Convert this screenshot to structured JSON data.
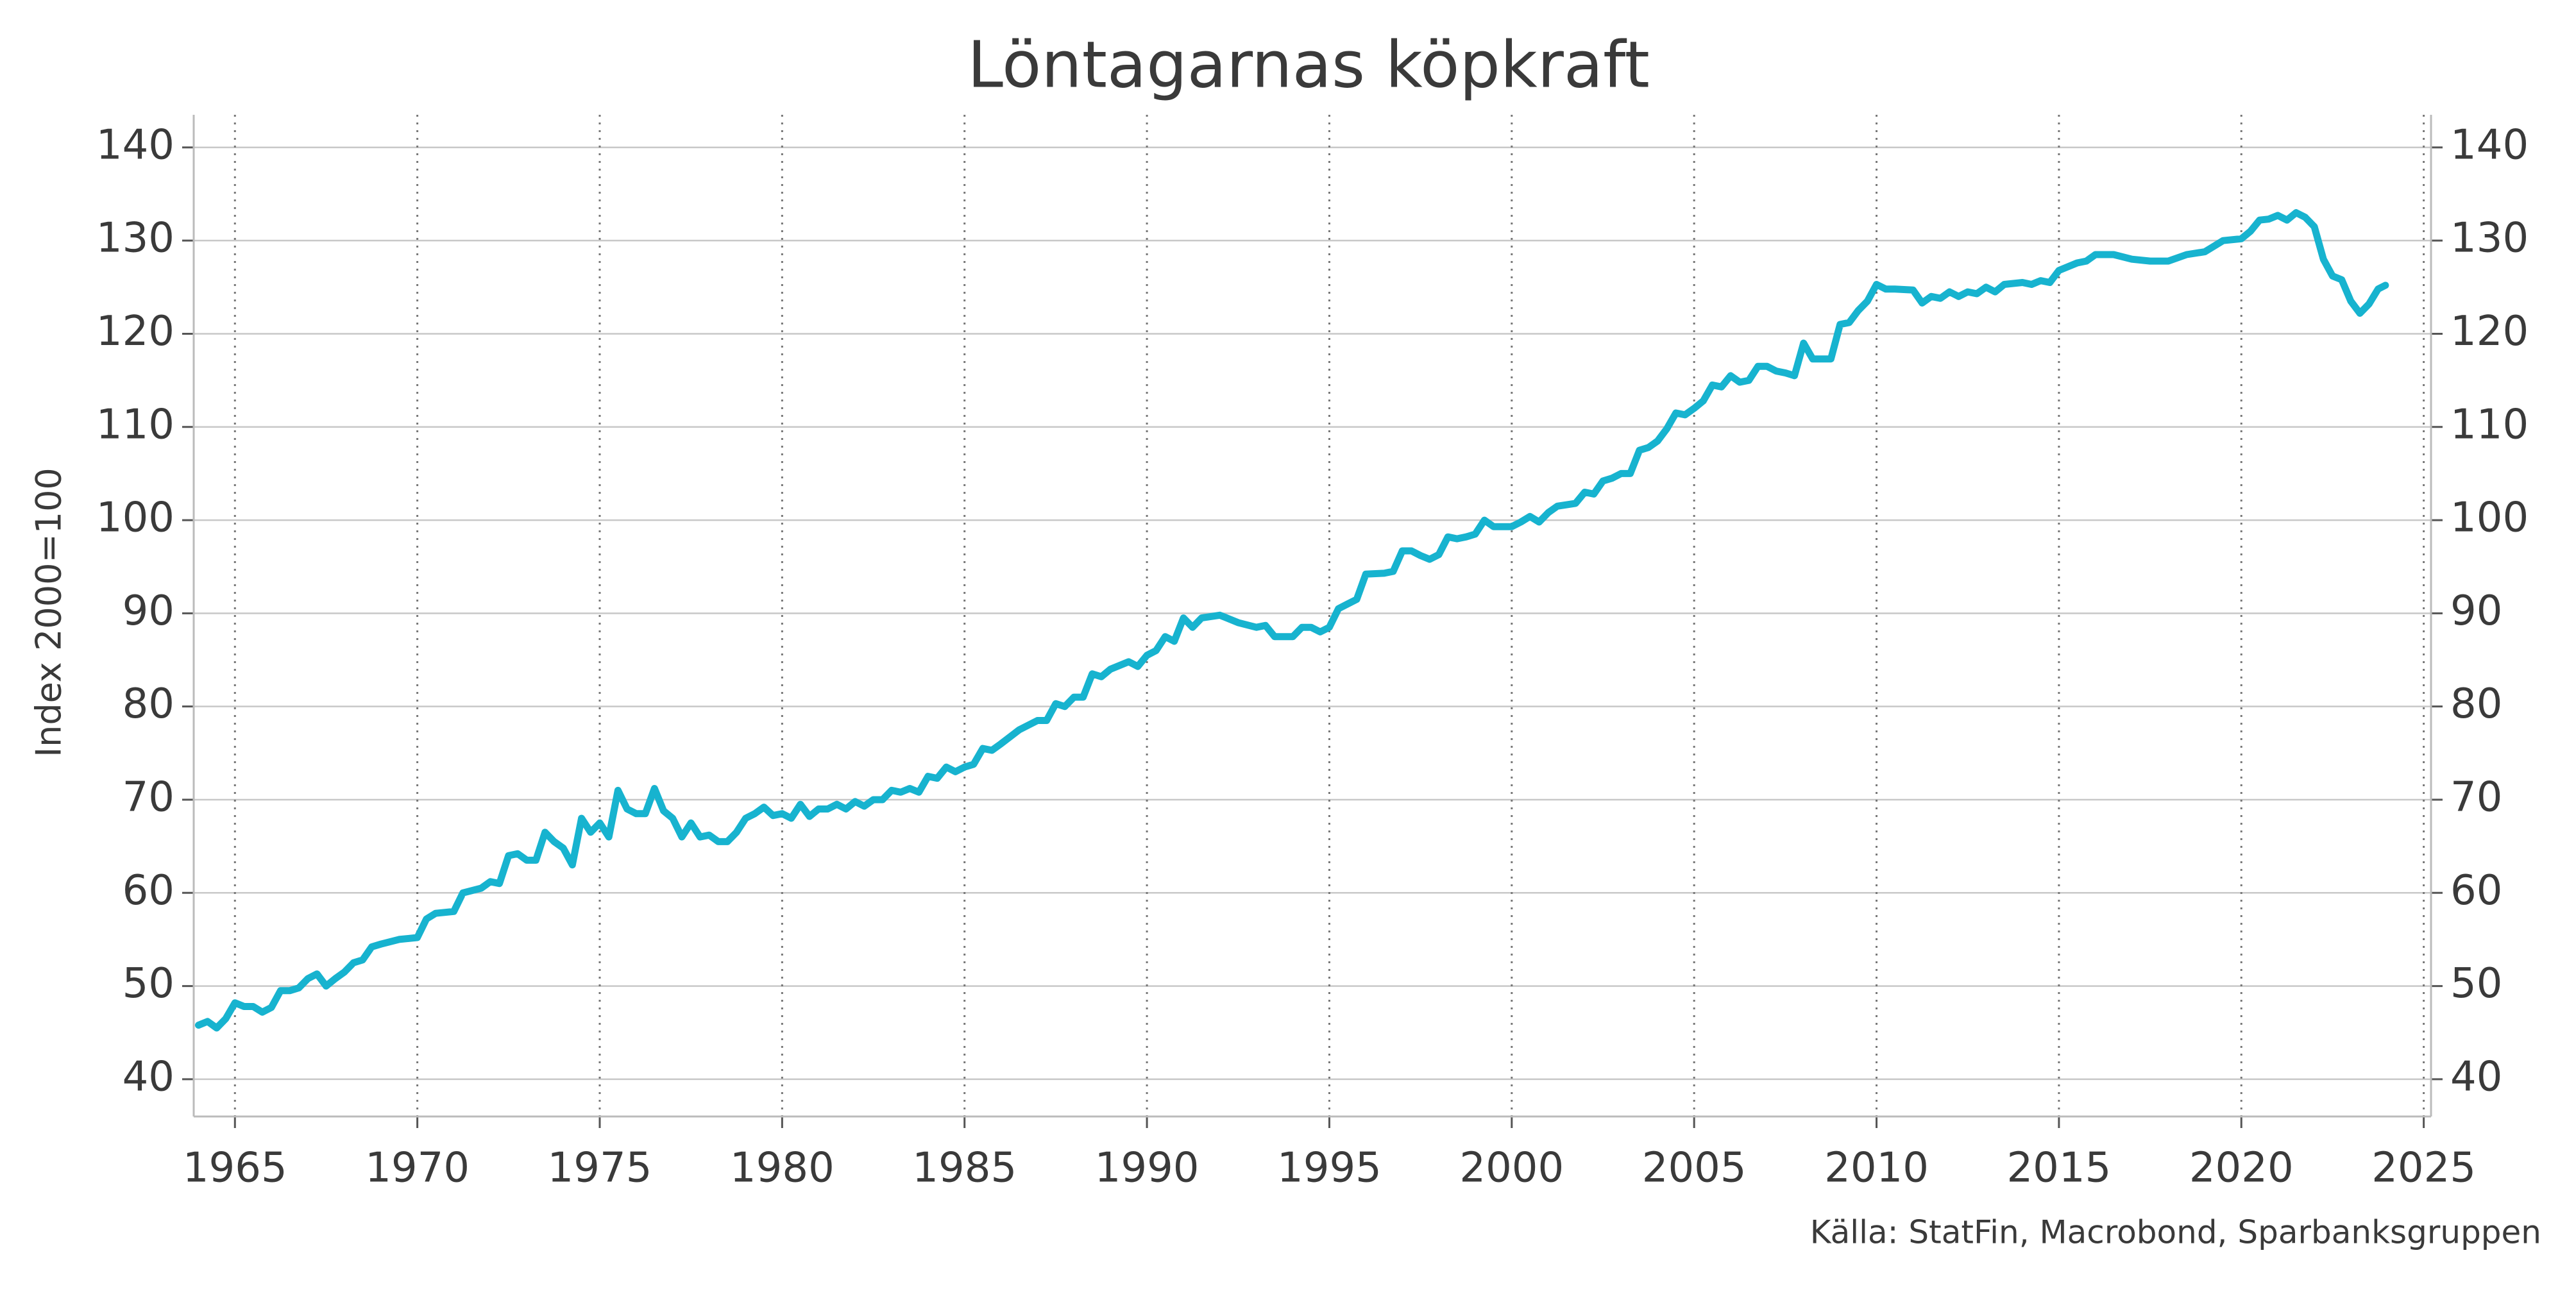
{
  "chart_data": {
    "type": "line",
    "title": "Löntagarnas köpkraft",
    "y_label": "Index 2000=100",
    "source": "Källa: StatFin, Macrobond, Sparbanksgruppen",
    "x": [
      1964.0,
      1964.25,
      1964.5,
      1964.75,
      1965.0,
      1965.25,
      1965.5,
      1965.75,
      1966.0,
      1966.25,
      1966.5,
      1966.75,
      1967.0,
      1967.25,
      1967.5,
      1967.75,
      1968.0,
      1968.25,
      1968.5,
      1968.75,
      1969.0,
      1969.5,
      1970.0,
      1970.25,
      1970.5,
      1971.0,
      1971.25,
      1971.75,
      1972.0,
      1972.25,
      1972.5,
      1972.75,
      1973.0,
      1973.25,
      1973.5,
      1973.75,
      1974.0,
      1974.25,
      1974.5,
      1974.75,
      1975.0,
      1975.25,
      1975.5,
      1975.75,
      1976.0,
      1976.25,
      1976.5,
      1976.75,
      1977.0,
      1977.25,
      1977.5,
      1977.75,
      1978.0,
      1978.25,
      1978.5,
      1978.75,
      1979.0,
      1979.25,
      1979.5,
      1979.75,
      1980.0,
      1980.25,
      1980.5,
      1980.75,
      1981.0,
      1981.25,
      1981.5,
      1981.75,
      1982.0,
      1982.25,
      1982.5,
      1982.75,
      1983.0,
      1983.25,
      1983.5,
      1983.75,
      1984.0,
      1984.25,
      1984.5,
      1984.75,
      1985.0,
      1985.25,
      1985.5,
      1985.75,
      1986.0,
      1986.5,
      1987.0,
      1987.25,
      1987.5,
      1987.75,
      1988.0,
      1988.25,
      1988.5,
      1988.75,
      1989.0,
      1989.5,
      1989.75,
      1990.0,
      1990.25,
      1990.5,
      1990.75,
      1991.0,
      1991.25,
      1991.5,
      1992.0,
      1992.5,
      1993.0,
      1993.25,
      1993.5,
      1994.0,
      1994.25,
      1994.5,
      1994.75,
      1995.0,
      1995.25,
      1995.5,
      1995.75,
      1996.0,
      1996.5,
      1996.75,
      1997.0,
      1997.25,
      1997.5,
      1997.75,
      1998.0,
      1998.25,
      1998.5,
      1998.75,
      1999.0,
      1999.25,
      1999.5,
      2000.0,
      2000.25,
      2000.5,
      2000.75,
      2001.0,
      2001.25,
      2001.75,
      2002.0,
      2002.25,
      2002.5,
      2002.75,
      2003.0,
      2003.25,
      2003.5,
      2003.75,
      2004.0,
      2004.25,
      2004.5,
      2004.75,
      2005.0,
      2005.25,
      2005.5,
      2005.75,
      2006.0,
      2006.25,
      2006.5,
      2006.75,
      2007.0,
      2007.25,
      2007.5,
      2007.75,
      2008.0,
      2008.25,
      2008.5,
      2008.75,
      2009.0,
      2009.25,
      2009.5,
      2009.75,
      2010.0,
      2010.25,
      2010.5,
      2011.0,
      2011.25,
      2011.5,
      2011.75,
      2012.0,
      2012.25,
      2012.5,
      2012.75,
      2013.0,
      2013.25,
      2013.5,
      2014.0,
      2014.25,
      2014.5,
      2014.75,
      2015.0,
      2015.5,
      2015.75,
      2016.0,
      2016.5,
      2017.0,
      2017.5,
      2018.0,
      2018.5,
      2019.0,
      2019.5,
      2020.0,
      2020.25,
      2020.5,
      2020.75,
      2021.0,
      2021.25,
      2021.5,
      2021.75,
      2022.0,
      2022.25,
      2022.5,
      2022.75,
      2023.0,
      2023.25,
      2023.5,
      2023.75,
      2023.95
    ],
    "series": [
      {
        "color": "#17b3cf",
        "values": [
          45.8,
          46.2,
          45.5,
          46.5,
          48.2,
          47.8,
          47.8,
          47.2,
          47.7,
          49.5,
          49.5,
          49.8,
          50.8,
          51.3,
          50.0,
          50.8,
          51.5,
          52.5,
          52.8,
          54.2,
          54.5,
          55.0,
          55.2,
          57.2,
          57.8,
          58.0,
          60.0,
          60.5,
          61.2,
          61.0,
          64.0,
          64.2,
          63.5,
          63.5,
          66.5,
          65.5,
          64.8,
          63.0,
          68.0,
          66.5,
          67.5,
          66.0,
          71.0,
          69.0,
          68.5,
          68.5,
          71.2,
          68.8,
          68.0,
          66.0,
          67.5,
          66.0,
          66.2,
          65.5,
          65.5,
          66.5,
          68.0,
          68.5,
          69.2,
          68.3,
          68.5,
          68.0,
          69.5,
          68.2,
          69.0,
          69.0,
          69.5,
          69.0,
          69.8,
          69.3,
          70.0,
          70.0,
          71.0,
          70.8,
          71.2,
          70.8,
          72.5,
          72.3,
          73.5,
          73.0,
          73.5,
          73.8,
          75.5,
          75.3,
          76.0,
          77.5,
          78.5,
          78.5,
          80.3,
          80.0,
          81.0,
          81.0,
          83.5,
          83.2,
          84.0,
          84.8,
          84.3,
          85.5,
          86.0,
          87.5,
          87.0,
          89.5,
          88.5,
          89.5,
          89.8,
          89.0,
          88.5,
          88.7,
          87.5,
          87.5,
          88.5,
          88.5,
          88.0,
          88.5,
          90.5,
          91.0,
          91.5,
          94.2,
          94.3,
          94.5,
          96.7,
          96.7,
          96.2,
          95.8,
          96.3,
          98.2,
          98.0,
          98.2,
          98.5,
          100.0,
          99.3,
          99.3,
          99.8,
          100.4,
          99.8,
          100.8,
          101.5,
          101.8,
          103.0,
          102.8,
          104.2,
          104.5,
          105.0,
          105.0,
          107.5,
          107.8,
          108.5,
          109.8,
          111.5,
          111.3,
          112.0,
          112.8,
          114.5,
          114.3,
          115.5,
          114.8,
          115.0,
          116.5,
          116.5,
          116.0,
          115.8,
          115.5,
          119.0,
          117.3,
          117.3,
          117.3,
          121.0,
          121.2,
          122.5,
          123.5,
          125.3,
          124.8,
          124.8,
          124.7,
          123.3,
          124.0,
          123.8,
          124.5,
          124.0,
          124.5,
          124.3,
          125.0,
          124.5,
          125.3,
          125.5,
          125.3,
          125.7,
          125.5,
          126.8,
          127.6,
          127.8,
          128.5,
          128.5,
          128.0,
          127.8,
          127.8,
          128.5,
          128.8,
          130.0,
          130.2,
          131.0,
          132.2,
          132.3,
          132.7,
          132.2,
          133.0,
          132.5,
          131.5,
          128.0,
          126.2,
          125.8,
          123.5,
          122.2,
          123.2,
          124.8,
          125.2
        ]
      }
    ],
    "xlim": [
      1963.87,
      2025.2
    ],
    "xticks": [
      1965,
      1970,
      1975,
      1980,
      1985,
      1990,
      1995,
      2000,
      2005,
      2010,
      2015,
      2020,
      2025
    ],
    "ylim": [
      36,
      143.5
    ],
    "yticks": [
      40,
      50,
      60,
      70,
      80,
      90,
      100,
      110,
      120,
      130,
      140
    ],
    "grid": true,
    "x_grid": "dotted",
    "mirror_y_axis": true
  }
}
